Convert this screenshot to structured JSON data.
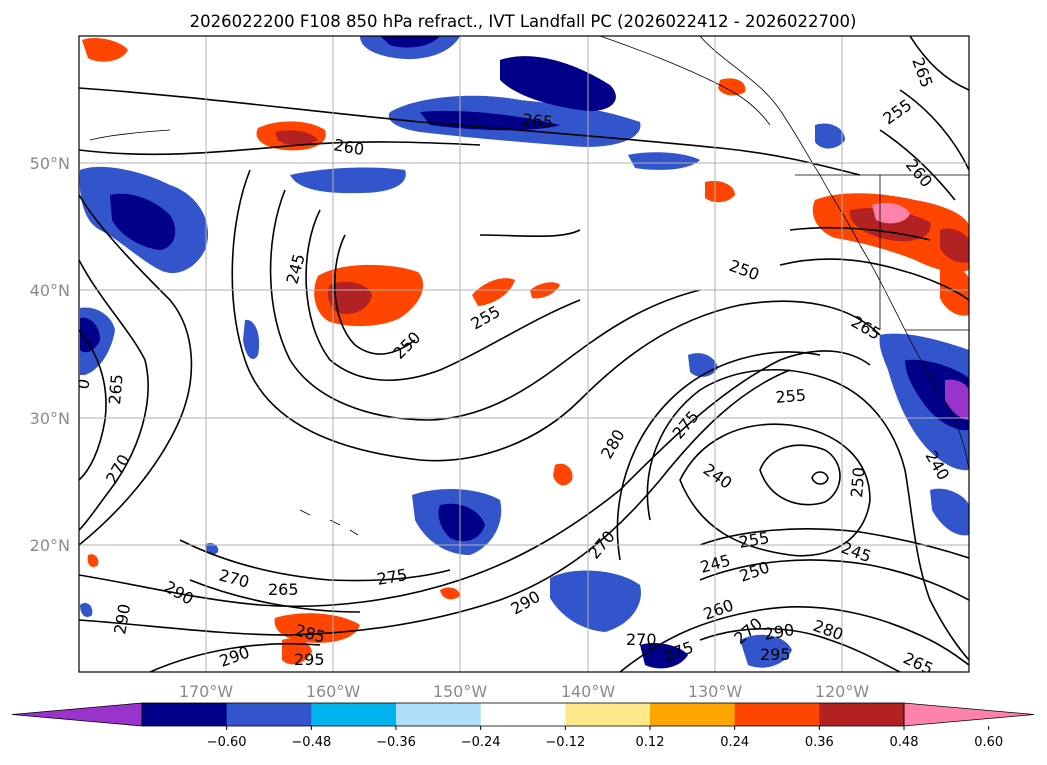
{
  "title": "2026022200 F108 850 hPa refract., IVT Landfall PC (2026022412 - 2026022700)",
  "lon_labels": [
    "170°W",
    "160°W",
    "150°W",
    "140°W",
    "130°W",
    "120°W"
  ],
  "lat_labels": [
    "50°N",
    "40°N",
    "30°N",
    "20°N"
  ],
  "colorbar": {
    "colors": [
      "#9933cc",
      "#000088",
      "#3355cc",
      "#00b4f0",
      "#aee0fa",
      "#ffffff",
      "#ffe88a",
      "#ffa500",
      "#ff4500",
      "#b22222",
      "#ff82aa"
    ],
    "tick_labels": [
      "−0.60",
      "−0.48",
      "−0.36",
      "−0.24",
      "−0.12",
      "0.12",
      "0.24",
      "0.36",
      "0.48",
      "0.60"
    ]
  },
  "contour_labels": [
    "260",
    "265",
    "265",
    "255",
    "260",
    "245",
    "250",
    "255",
    "250",
    "265",
    "255",
    "265",
    "270",
    "280",
    "275",
    "240",
    "250",
    "255",
    "245",
    "250",
    "245",
    "260",
    "270",
    "270",
    "265",
    "275",
    "290",
    "290",
    "290",
    "285",
    "295",
    "290",
    "290",
    "280",
    "295",
    "275",
    "265",
    "270",
    "0",
    "240",
    "270"
  ],
  "chart_data": {
    "type": "map",
    "projection": "cylindrical",
    "lon_range": [
      -180,
      -110
    ],
    "lat_range": [
      10,
      60
    ],
    "lon_ticks": [
      -170,
      -160,
      -150,
      -140,
      -130,
      -120
    ],
    "lat_ticks": [
      50,
      40,
      30,
      20
    ],
    "grid": true,
    "shaded_field_levels": [
      -0.6,
      -0.48,
      -0.36,
      -0.24,
      -0.12,
      0.12,
      0.24,
      0.36,
      0.48,
      0.6
    ],
    "contour_field_levels": [
      240,
      245,
      250,
      255,
      260,
      265,
      270,
      275,
      280,
      285,
      290,
      295
    ],
    "colorbar_position": "bottom"
  }
}
